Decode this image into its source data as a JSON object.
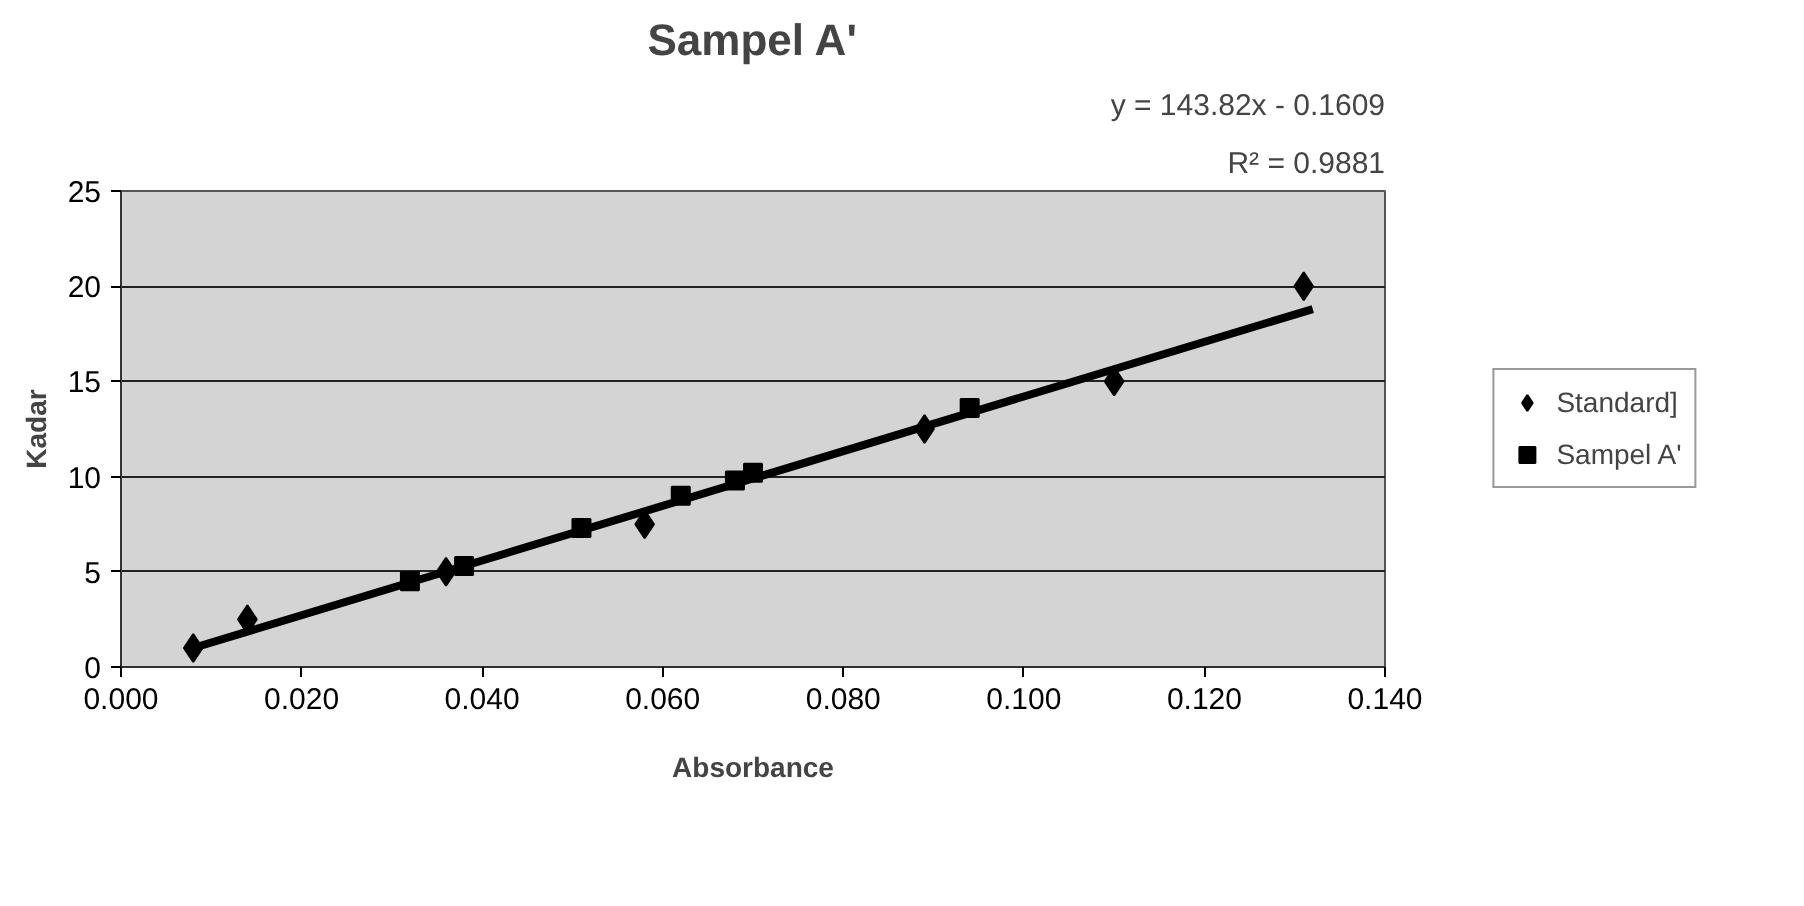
{
  "chart_data": {
    "type": "scatter",
    "title": "Sampel A'",
    "xlabel": "Absorbance",
    "ylabel": "Kadar",
    "annotations": [
      "y = 143.82x - 0.1609",
      "R² = 0.9881"
    ],
    "series": [
      {
        "name": "Standard]",
        "marker": "diamond",
        "color": "#000000",
        "x": [
          0.008,
          0.014,
          0.036,
          0.058,
          0.07,
          0.089,
          0.11,
          0.131
        ],
        "values": [
          1,
          2.5,
          5,
          7.5,
          null,
          12.5,
          15,
          20
        ]
      },
      {
        "name": "Sampel A'",
        "marker": "square",
        "color": "#000000",
        "x": [
          0.032,
          0.038,
          0.051,
          0.062,
          0.068,
          0.07,
          0.094
        ],
        "values": [
          4.5,
          5.3,
          7.3,
          9.0,
          9.8,
          10.2,
          13.6
        ]
      },
      {
        "type": "line",
        "color": "#000000",
        "x": [
          0.008,
          0.132
        ],
        "values": [
          1.0,
          18.8
        ]
      }
    ],
    "xlim": [
      0,
      0.14
    ],
    "ylim": [
      0,
      25
    ],
    "xticks": [
      {
        "value": 0,
        "label": "0.000"
      },
      {
        "value": 0.02,
        "label": "0.020"
      },
      {
        "value": 0.04,
        "label": "0.040"
      },
      {
        "value": 0.06,
        "label": "0.060"
      },
      {
        "value": 0.08,
        "label": "0.080"
      },
      {
        "value": 0.1,
        "label": "0.100"
      },
      {
        "value": 0.12,
        "label": "0.120"
      },
      {
        "value": 0.14,
        "label": "0.140"
      }
    ],
    "yticks": [
      0,
      5,
      10,
      15,
      20,
      25
    ],
    "grid": "y",
    "legend": "right"
  }
}
